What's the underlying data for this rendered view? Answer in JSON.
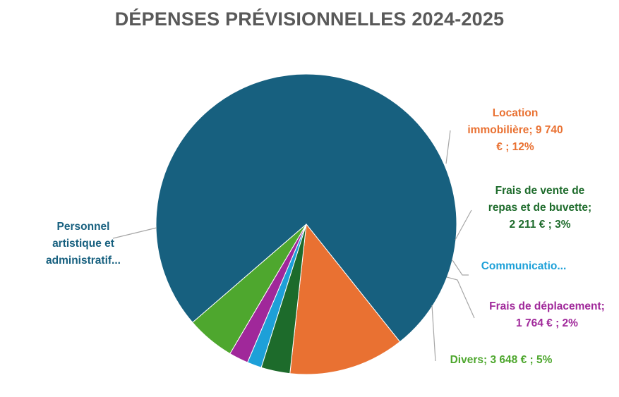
{
  "chart_data": {
    "type": "pie",
    "title": "DÉPENSES PRÉVISIONNELLES 2024-2025",
    "slices": [
      {
        "name": "Personnel artistique et administratif...",
        "value": 73,
        "color": "#17607F",
        "label_lines": [
          "Personnel",
          "artistique et",
          "administratif..."
        ]
      },
      {
        "name": "Location immobilière",
        "value": 12,
        "color": "#E97132",
        "label_lines": [
          "Location",
          "immobilière;  9 740",
          "€ ; 12%"
        ]
      },
      {
        "name": "Frais de vente de repas et de buvette",
        "value": 3,
        "color": "#1D6B2B",
        "label_lines": [
          "Frais de vente de",
          "repas et de buvette;",
          "2 211 € ; 3%"
        ]
      },
      {
        "name": "Communicatio...",
        "value": 1.5,
        "color": "#1DA0D8",
        "label_lines": [
          "Communicatio..."
        ]
      },
      {
        "name": "Frais de déplacement",
        "value": 2,
        "color": "#A0289A",
        "label_lines": [
          "Frais de déplacement;",
          "1 764 € ; 2%"
        ]
      },
      {
        "name": "Divers",
        "value": 5,
        "color": "#4EA72E",
        "label_lines": [
          "Divers;  3 648 € ; 5%"
        ]
      }
    ],
    "legend": "none"
  }
}
